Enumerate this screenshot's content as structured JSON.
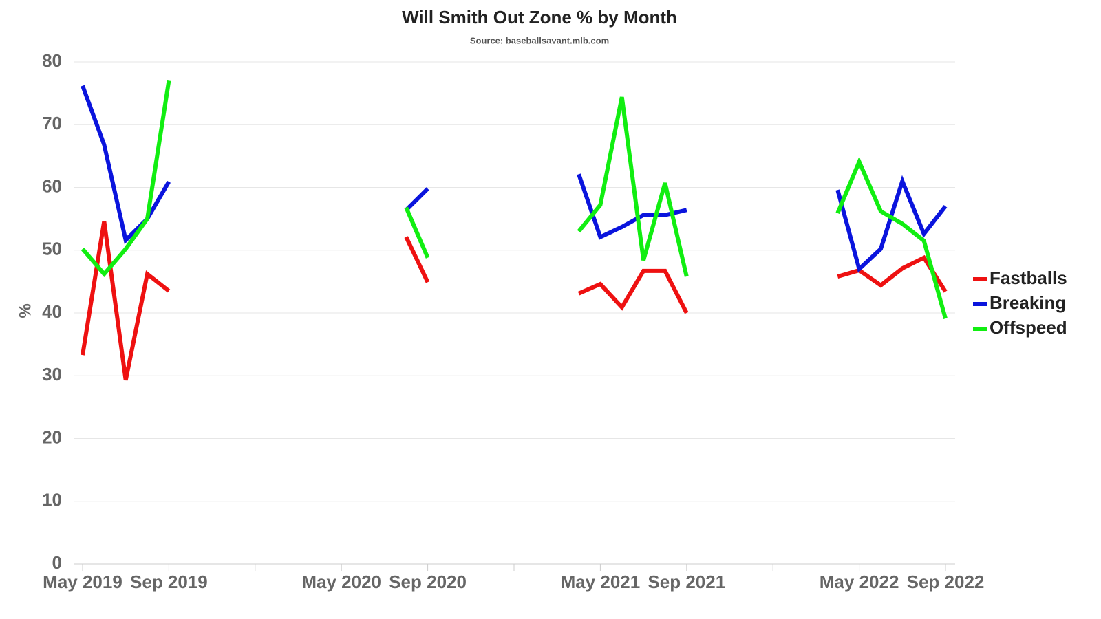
{
  "chart_data": {
    "type": "line",
    "title": "Will Smith Out Zone % by Month",
    "subtitle": "Source: baseballsavant.mlb.com",
    "y_label": "%",
    "categories": [
      "May 2019",
      null,
      null,
      null,
      "Sep 2019",
      null,
      null,
      null,
      null,
      null,
      null,
      null,
      "May 2020",
      null,
      null,
      null,
      "Sep 2020",
      null,
      null,
      null,
      null,
      null,
      null,
      null,
      "May 2021",
      null,
      null,
      null,
      "Sep 2021",
      null,
      null,
      null,
      null,
      null,
      null,
      null,
      "May 2022",
      null,
      null,
      null,
      "Sep 2022"
    ],
    "series": [
      {
        "name": "Fastballs",
        "color": "#ee1111",
        "values": [
          33.3,
          54.6,
          29.3,
          46.2,
          43.5,
          null,
          null,
          null,
          null,
          null,
          null,
          null,
          null,
          null,
          null,
          52.1,
          44.9,
          null,
          null,
          null,
          null,
          null,
          null,
          43.1,
          44.6,
          40.9,
          46.7,
          46.7,
          40.0,
          null,
          null,
          null,
          null,
          null,
          null,
          45.8,
          46.8,
          44.4,
          47.1,
          48.8,
          43.4
        ]
      },
      {
        "name": "Breaking",
        "color": "#0a14dd",
        "values": [
          76.2,
          66.8,
          51.6,
          55.0,
          60.9,
          null,
          null,
          null,
          null,
          null,
          null,
          null,
          null,
          null,
          null,
          56.4,
          59.8,
          null,
          null,
          null,
          null,
          null,
          null,
          62.1,
          52.1,
          53.7,
          55.6,
          55.6,
          56.4,
          null,
          null,
          null,
          null,
          null,
          null,
          59.6,
          47.0,
          50.2,
          61.0,
          52.6,
          57.0
        ]
      },
      {
        "name": "Offspeed",
        "color": "#11ee11",
        "values": [
          50.2,
          46.2,
          50.2,
          55.0,
          77.0,
          null,
          null,
          null,
          null,
          null,
          null,
          null,
          null,
          null,
          null,
          56.8,
          48.8,
          null,
          null,
          null,
          null,
          null,
          null,
          53.0,
          57.2,
          74.4,
          48.4,
          60.7,
          45.8,
          null,
          null,
          null,
          null,
          null,
          null,
          55.9,
          64.1,
          56.2,
          54.2,
          51.5,
          39.1
        ]
      }
    ],
    "ylim": [
      0,
      80
    ],
    "yticks": [
      0,
      10,
      20,
      30,
      40,
      50,
      60,
      70,
      80
    ],
    "grid": true,
    "legend": "right"
  }
}
